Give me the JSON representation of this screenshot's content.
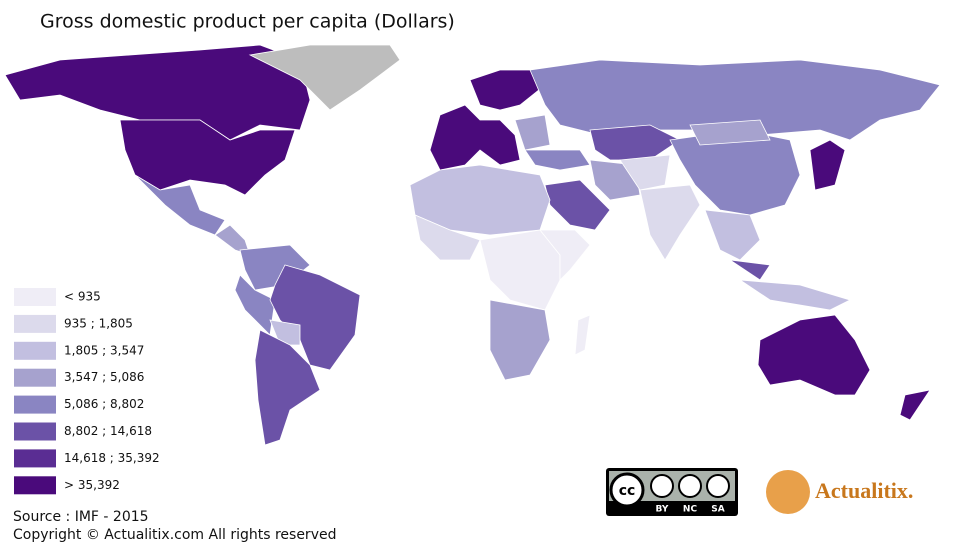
{
  "title": "Gross domestic product per capita (Dollars)",
  "legend": {
    "items": [
      {
        "label": "< 935",
        "color": "#efedf6"
      },
      {
        "label": "935 ; 1,805",
        "color": "#dcdaec"
      },
      {
        "label": "1,805 ; 3,547",
        "color": "#c2bfe0"
      },
      {
        "label": "3,547 ; 5,086",
        "color": "#a6a2ce"
      },
      {
        "label": "5,086 ; 8,802",
        "color": "#8a85c2"
      },
      {
        "label": "8,802 ; 14,618",
        "color": "#6b52a7"
      },
      {
        "label": "14,618 ; 35,392",
        "color": "#5a2d93"
      },
      {
        "label": "> 35,392",
        "color": "#4a0a7b"
      }
    ]
  },
  "source": "Source : IMF - 2015",
  "copyright": "Copyright © Actualitix.com All rights reserved",
  "license": {
    "logo": "cc",
    "labels": [
      "BY",
      "NC",
      "SA"
    ]
  },
  "brand": "Actualitix."
}
